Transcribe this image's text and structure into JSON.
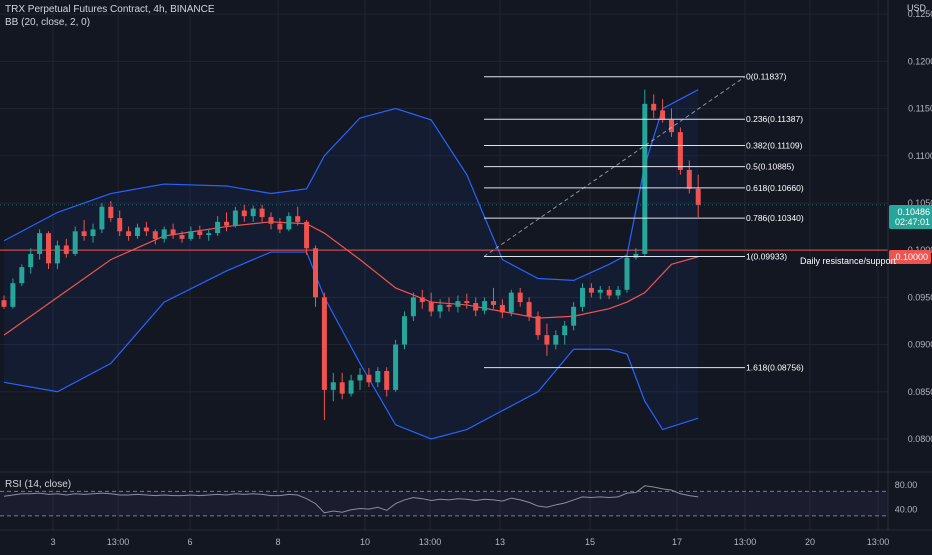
{
  "header": {
    "symbol_line": "TRX Perpetual Futures Contract, 4h, BINANCE",
    "indicator_line": "BB (20, close, 2, 0)",
    "rsi_label": "RSI (14, close)",
    "currency": "USD"
  },
  "badges": {
    "last_price": "0.10486",
    "countdown": "02:47:01",
    "level_price": "0.10000"
  },
  "annotation": "Daily resistance/support",
  "colors": {
    "background": "#131722",
    "grid": "#1f2433",
    "up": "#26a69a",
    "down": "#ef5350",
    "bb_band": "#2962ff",
    "bb_basis": "#f0544f",
    "fib": "#e0e3eb",
    "rsi": "#8a8f9c"
  },
  "chart_data": {
    "type": "candlestick",
    "y_range": [
      0.0765,
      0.1265
    ],
    "y_ticks": [
      "0.12500",
      "0.12000",
      "0.11500",
      "0.11000",
      "0.10500",
      "0.10000",
      "0.09500",
      "0.09000",
      "0.08500",
      "0.08000"
    ],
    "x_ticks": [
      "3",
      "13:00",
      "6",
      "8",
      "10",
      "13:00",
      "13",
      "15",
      "17",
      "13:00",
      "20",
      "13:00"
    ],
    "rsi_ticks": [
      "80.00",
      "40.00"
    ],
    "horizontal_level": 0.1,
    "candles": [
      [
        0.0947,
        0.0952,
        0.0938,
        0.094
      ],
      [
        0.094,
        0.097,
        0.0938,
        0.0965
      ],
      [
        0.0965,
        0.0985,
        0.0962,
        0.0982
      ],
      [
        0.0982,
        0.1002,
        0.0975,
        0.0996
      ],
      [
        0.0996,
        0.1022,
        0.099,
        0.1018
      ],
      [
        0.1018,
        0.102,
        0.098,
        0.0986
      ],
      [
        0.0986,
        0.101,
        0.098,
        0.1005
      ],
      [
        0.1005,
        0.1012,
        0.0992,
        0.0996
      ],
      [
        0.0996,
        0.1025,
        0.0994,
        0.102
      ],
      [
        0.102,
        0.1032,
        0.101,
        0.1015
      ],
      [
        0.1015,
        0.1028,
        0.1008,
        0.1022
      ],
      [
        0.1022,
        0.105,
        0.1018,
        0.1046
      ],
      [
        0.1046,
        0.1052,
        0.103,
        0.1034
      ],
      [
        0.1034,
        0.1042,
        0.1015,
        0.102
      ],
      [
        0.102,
        0.1025,
        0.101,
        0.1015
      ],
      [
        0.1015,
        0.1028,
        0.1012,
        0.1024
      ],
      [
        0.1024,
        0.103,
        0.1015,
        0.102
      ],
      [
        0.102,
        0.1022,
        0.1006,
        0.1012
      ],
      [
        0.1012,
        0.1025,
        0.1008,
        0.1022
      ],
      [
        0.1022,
        0.1028,
        0.1012,
        0.1016
      ],
      [
        0.1016,
        0.102,
        0.1008,
        0.1012
      ],
      [
        0.1012,
        0.1025,
        0.101,
        0.102
      ],
      [
        0.102,
        0.1026,
        0.1012,
        0.1016
      ],
      [
        0.1016,
        0.1022,
        0.101,
        0.1018
      ],
      [
        0.1018,
        0.1036,
        0.1015,
        0.103
      ],
      [
        0.103,
        0.104,
        0.102,
        0.1026
      ],
      [
        0.1026,
        0.1046,
        0.1024,
        0.1042
      ],
      [
        0.1042,
        0.1048,
        0.103,
        0.1036
      ],
      [
        0.1036,
        0.1047,
        0.103,
        0.1044
      ],
      [
        0.1044,
        0.1048,
        0.103,
        0.1035
      ],
      [
        0.1035,
        0.104,
        0.1022,
        0.1028
      ],
      [
        0.1028,
        0.1034,
        0.1018,
        0.1022
      ],
      [
        0.1022,
        0.104,
        0.102,
        0.1036
      ],
      [
        0.1036,
        0.1046,
        0.1026,
        0.103
      ],
      [
        0.103,
        0.1032,
        0.0995,
        0.1002
      ],
      [
        0.1002,
        0.1005,
        0.094,
        0.095
      ],
      [
        0.095,
        0.0955,
        0.082,
        0.0852
      ],
      [
        0.0852,
        0.087,
        0.084,
        0.086
      ],
      [
        0.086,
        0.087,
        0.0842,
        0.0848
      ],
      [
        0.0848,
        0.0868,
        0.0845,
        0.0862
      ],
      [
        0.0862,
        0.0875,
        0.0852,
        0.0868
      ],
      [
        0.0868,
        0.0875,
        0.0855,
        0.086
      ],
      [
        0.086,
        0.0876,
        0.0855,
        0.0872
      ],
      [
        0.0872,
        0.0876,
        0.0845,
        0.0852
      ],
      [
        0.0852,
        0.0905,
        0.085,
        0.09
      ],
      [
        0.09,
        0.0935,
        0.0895,
        0.093
      ],
      [
        0.093,
        0.0955,
        0.0925,
        0.095
      ],
      [
        0.095,
        0.0958,
        0.0938,
        0.0945
      ],
      [
        0.0945,
        0.0955,
        0.093,
        0.0935
      ],
      [
        0.0935,
        0.0948,
        0.0928,
        0.0942
      ],
      [
        0.0942,
        0.095,
        0.0935,
        0.094
      ],
      [
        0.094,
        0.0952,
        0.0934,
        0.0946
      ],
      [
        0.0946,
        0.0954,
        0.0938,
        0.0944
      ],
      [
        0.0944,
        0.095,
        0.093,
        0.0936
      ],
      [
        0.0936,
        0.095,
        0.0932,
        0.0946
      ],
      [
        0.0946,
        0.096,
        0.0938,
        0.0942
      ],
      [
        0.0942,
        0.0948,
        0.0928,
        0.0934
      ],
      [
        0.0934,
        0.0958,
        0.093,
        0.0955
      ],
      [
        0.0955,
        0.096,
        0.094,
        0.0945
      ],
      [
        0.0945,
        0.095,
        0.0925,
        0.093
      ],
      [
        0.093,
        0.0935,
        0.0905,
        0.091
      ],
      [
        0.091,
        0.0922,
        0.0888,
        0.09
      ],
      [
        0.09,
        0.0915,
        0.0895,
        0.091
      ],
      [
        0.091,
        0.0925,
        0.09,
        0.092
      ],
      [
        0.092,
        0.0945,
        0.0915,
        0.094
      ],
      [
        0.094,
        0.0965,
        0.0935,
        0.096
      ],
      [
        0.096,
        0.0965,
        0.095,
        0.0955
      ],
      [
        0.0955,
        0.0962,
        0.0948,
        0.0958
      ],
      [
        0.0958,
        0.0962,
        0.0948,
        0.0952
      ],
      [
        0.0952,
        0.0962,
        0.0948,
        0.0958
      ],
      [
        0.0958,
        0.0995,
        0.0955,
        0.0992
      ],
      [
        0.0992,
        0.1002,
        0.099,
        0.0996
      ],
      [
        0.0996,
        0.117,
        0.0994,
        0.1155
      ],
      [
        0.1155,
        0.1165,
        0.114,
        0.1148
      ],
      [
        0.1148,
        0.116,
        0.1135,
        0.1138
      ],
      [
        0.1138,
        0.115,
        0.112,
        0.1125
      ],
      [
        0.1125,
        0.113,
        0.108,
        0.1085
      ],
      [
        0.1085,
        0.1095,
        0.106,
        0.1065
      ],
      [
        0.1065,
        0.108,
        0.1035,
        0.1048
      ]
    ],
    "bollinger": {
      "upper": [
        [
          0,
          0.101
        ],
        [
          6,
          0.104
        ],
        [
          12,
          0.106
        ],
        [
          18,
          0.107
        ],
        [
          25,
          0.1068
        ],
        [
          30,
          0.106
        ],
        [
          34,
          0.1065
        ],
        [
          36,
          0.11
        ],
        [
          40,
          0.114
        ],
        [
          44,
          0.115
        ],
        [
          48,
          0.1138
        ],
        [
          52,
          0.108
        ],
        [
          56,
          0.099
        ],
        [
          60,
          0.097
        ],
        [
          64,
          0.0968
        ],
        [
          68,
          0.0985
        ],
        [
          70,
          0.0995
        ],
        [
          72,
          0.109
        ],
        [
          74,
          0.115
        ],
        [
          78,
          0.117
        ]
      ],
      "basis": [
        [
          0,
          0.091
        ],
        [
          6,
          0.095
        ],
        [
          12,
          0.099
        ],
        [
          18,
          0.1015
        ],
        [
          25,
          0.1025
        ],
        [
          30,
          0.103
        ],
        [
          34,
          0.1028
        ],
        [
          36,
          0.1018
        ],
        [
          40,
          0.099
        ],
        [
          44,
          0.096
        ],
        [
          48,
          0.0945
        ],
        [
          52,
          0.0942
        ],
        [
          56,
          0.0935
        ],
        [
          60,
          0.0928
        ],
        [
          64,
          0.093
        ],
        [
          68,
          0.0938
        ],
        [
          70,
          0.0945
        ],
        [
          72,
          0.0955
        ],
        [
          75,
          0.0985
        ],
        [
          78,
          0.0993
        ]
      ],
      "lower": [
        [
          0,
          0.086
        ],
        [
          6,
          0.085
        ],
        [
          12,
          0.088
        ],
        [
          18,
          0.0945
        ],
        [
          25,
          0.0978
        ],
        [
          30,
          0.0998
        ],
        [
          34,
          0.0998
        ],
        [
          36,
          0.095
        ],
        [
          40,
          0.088
        ],
        [
          44,
          0.0815
        ],
        [
          48,
          0.08
        ],
        [
          52,
          0.081
        ],
        [
          56,
          0.083
        ],
        [
          60,
          0.085
        ],
        [
          64,
          0.0895
        ],
        [
          68,
          0.0895
        ],
        [
          70,
          0.089
        ],
        [
          72,
          0.084
        ],
        [
          74,
          0.081
        ],
        [
          78,
          0.0822
        ]
      ]
    },
    "fibonacci": [
      {
        "label": "0(0.11837)",
        "value": 0.11837
      },
      {
        "label": "0.236(0.11387)",
        "value": 0.11387
      },
      {
        "label": "0.382(0.11109)",
        "value": 0.11109
      },
      {
        "label": "0.5(0.10885)",
        "value": 0.10885
      },
      {
        "label": "0.618(0.10660)",
        "value": 0.1066
      },
      {
        "label": "0.786(0.10340)",
        "value": 0.1034
      },
      {
        "label": "1(0.09933)",
        "value": 0.09933
      },
      {
        "label": "1.618(0.08756)",
        "value": 0.08756
      }
    ],
    "rsi": {
      "range": [
        20,
        95
      ],
      "upper_band": 70,
      "lower_band": 30,
      "values": [
        62,
        64,
        66,
        66,
        67,
        65,
        66,
        64,
        66,
        65,
        66,
        67,
        66,
        64,
        64,
        65,
        64,
        63,
        64,
        63,
        63,
        64,
        63,
        64,
        65,
        64,
        66,
        65,
        66,
        65,
        63,
        63,
        65,
        64,
        58,
        50,
        35,
        38,
        36,
        40,
        42,
        41,
        44,
        39,
        50,
        56,
        60,
        58,
        55,
        57,
        56,
        58,
        57,
        55,
        57,
        56,
        54,
        59,
        56,
        52,
        46,
        44,
        48,
        51,
        56,
        61,
        60,
        61,
        60,
        61,
        67,
        68,
        79,
        77,
        74,
        72,
        66,
        63,
        61
      ]
    }
  }
}
